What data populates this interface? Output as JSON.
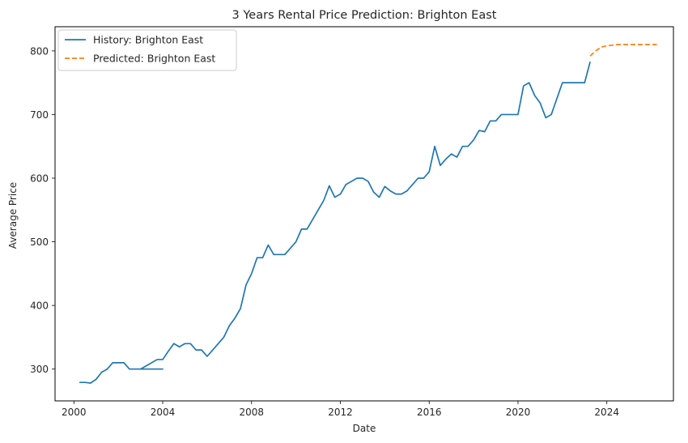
{
  "chart_data": {
    "type": "line",
    "title": "3 Years Rental Price Prediction: Brighton East",
    "xlabel": "Date",
    "ylabel": "Average Price",
    "xlim": [
      1999.15,
      2027.0
    ],
    "ylim": [
      250,
      838
    ],
    "x_ticks": [
      2000,
      2004,
      2008,
      2012,
      2016,
      2020,
      2024
    ],
    "y_ticks": [
      300,
      400,
      500,
      600,
      700,
      800
    ],
    "grid": false,
    "legend_position": "top-left",
    "series": [
      {
        "name": "History: Brighton East",
        "color": "#1f77b4",
        "style": "solid",
        "x": [
          2000.25,
          2000.5,
          2000.75,
          2001.0,
          2001.25,
          2001.5,
          2001.75,
          2002.0,
          2002.25,
          2002.5,
          2002.75,
          2003.0,
          2003.25,
          2003.5,
          2003.75,
          2004.0,
          2003.5,
          2003.25,
          2003.0,
          2003.75,
          2004.0,
          2004.25,
          2004.5,
          2004.75,
          2005.0,
          2005.25,
          2005.5,
          2005.75,
          2006.0,
          2006.25,
          2006.5,
          2006.75,
          2007.0,
          2007.25,
          2007.5,
          2007.75,
          2008.0,
          2008.25,
          2008.5,
          2008.75,
          2009.0,
          2009.25,
          2009.5,
          2009.75,
          2010.0,
          2010.25,
          2010.5,
          2010.75,
          2011.0,
          2011.25,
          2011.5,
          2011.75,
          2012.0,
          2012.25,
          2012.5,
          2012.75,
          2013.0,
          2013.25,
          2013.5,
          2013.75,
          2014.0,
          2014.25,
          2014.5,
          2014.75,
          2015.0,
          2015.25,
          2015.5,
          2015.75,
          2016.0,
          2016.25,
          2016.5,
          2016.75,
          2017.0,
          2017.25,
          2017.5,
          2017.75,
          2018.0,
          2018.25,
          2018.5,
          2018.75,
          2019.0,
          2019.25,
          2019.5,
          2019.75,
          2020.0,
          2020.25,
          2020.5,
          2020.75,
          2021.0,
          2021.25,
          2021.5,
          2021.75,
          2022.0,
          2022.25,
          2022.5,
          2022.75,
          2023.0,
          2023.25
        ],
        "y": [
          279,
          279,
          278,
          284,
          295,
          300,
          310,
          310,
          310,
          300,
          300,
          300,
          300,
          300,
          300,
          300,
          300,
          300,
          300,
          315,
          315,
          328,
          340,
          335,
          340,
          340,
          330,
          330,
          320,
          330,
          340,
          350,
          368,
          380,
          395,
          432,
          450,
          475,
          475,
          495,
          480,
          480,
          480,
          490,
          500,
          520,
          520,
          535,
          550,
          565,
          588,
          570,
          575,
          590,
          595,
          600,
          600,
          595,
          578,
          570,
          587,
          580,
          575,
          575,
          580,
          590,
          600,
          600,
          610,
          650,
          620,
          630,
          638,
          633,
          650,
          650,
          660,
          675,
          673,
          690,
          690,
          700,
          700,
          700,
          700,
          745,
          750,
          730,
          718,
          695,
          700,
          725,
          750,
          750,
          750,
          750,
          750,
          783
        ]
      },
      {
        "name": "Predicted: Brighton East",
        "color": "#ff7f0e",
        "style": "dashed",
        "x": [
          2023.25,
          2023.5,
          2023.75,
          2024.0,
          2024.25,
          2024.5,
          2024.75,
          2025.0,
          2025.25,
          2025.5,
          2025.75,
          2026.0,
          2026.25
        ],
        "y": [
          792,
          800,
          806,
          808,
          809,
          810,
          810,
          810,
          810,
          810,
          810,
          810,
          810
        ]
      }
    ]
  }
}
